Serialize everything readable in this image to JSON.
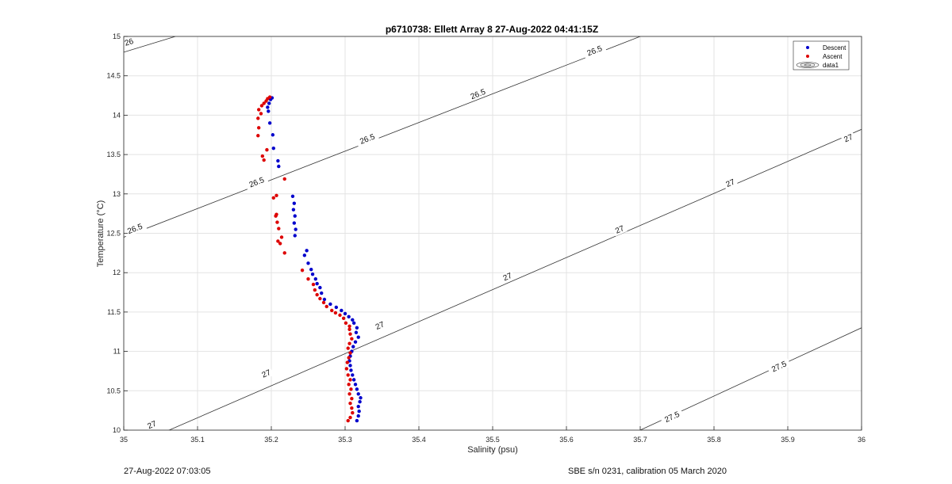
{
  "chart_data": {
    "type": "scatter",
    "title": "p6710738: Ellett Array 8 27-Aug-2022 04:41:15Z",
    "xlabel": "Salinity (psu)",
    "ylabel": "Temperature (°C)",
    "xlim": [
      35,
      36
    ],
    "ylim": [
      10,
      15
    ],
    "xticks": [
      "35",
      "35.1",
      "35.2",
      "35.3",
      "35.4",
      "35.5",
      "35.6",
      "35.7",
      "35.8",
      "35.9",
      "36"
    ],
    "yticks": [
      "10",
      "10.5",
      "11",
      "11.5",
      "12",
      "12.5",
      "13",
      "13.5",
      "14",
      "14.5",
      "15"
    ],
    "grid": true,
    "legend_position": "top-right",
    "legend": [
      "Descent",
      "Ascent",
      "data1"
    ],
    "series": [
      {
        "name": "Descent",
        "color": "#0000cc",
        "points": [
          [
            35.316,
            10.12
          ],
          [
            35.318,
            10.18
          ],
          [
            35.319,
            10.24
          ],
          [
            35.318,
            10.3
          ],
          [
            35.32,
            10.36
          ],
          [
            35.321,
            10.41
          ],
          [
            35.318,
            10.46
          ],
          [
            35.316,
            10.52
          ],
          [
            35.314,
            10.58
          ],
          [
            35.312,
            10.64
          ],
          [
            35.31,
            10.7
          ],
          [
            35.308,
            10.76
          ],
          [
            35.307,
            10.82
          ],
          [
            35.306,
            10.88
          ],
          [
            35.307,
            10.94
          ],
          [
            35.309,
            11.0
          ],
          [
            35.311,
            11.06
          ],
          [
            35.314,
            11.12
          ],
          [
            35.318,
            11.18
          ],
          [
            35.315,
            11.24
          ],
          [
            35.316,
            11.3
          ],
          [
            35.312,
            11.36
          ],
          [
            35.31,
            11.4
          ],
          [
            35.305,
            11.44
          ],
          [
            35.3,
            11.48
          ],
          [
            35.295,
            11.52
          ],
          [
            35.288,
            11.56
          ],
          [
            35.28,
            11.6
          ],
          [
            35.272,
            11.66
          ],
          [
            35.268,
            11.74
          ],
          [
            35.266,
            11.81
          ],
          [
            35.262,
            11.86
          ],
          [
            35.26,
            11.92
          ],
          [
            35.256,
            11.98
          ],
          [
            35.254,
            12.04
          ],
          [
            35.25,
            12.12
          ],
          [
            35.245,
            12.22
          ],
          [
            35.248,
            12.28
          ],
          [
            35.232,
            12.47
          ],
          [
            35.233,
            12.55
          ],
          [
            35.231,
            12.63
          ],
          [
            35.232,
            12.72
          ],
          [
            35.23,
            12.8
          ],
          [
            35.231,
            12.88
          ],
          [
            35.229,
            12.97
          ],
          [
            35.21,
            13.35
          ],
          [
            35.209,
            13.42
          ],
          [
            35.203,
            13.58
          ],
          [
            35.202,
            13.75
          ],
          [
            35.198,
            13.9
          ],
          [
            35.196,
            14.05
          ],
          [
            35.195,
            14.1
          ],
          [
            35.197,
            14.15
          ],
          [
            35.199,
            14.2
          ],
          [
            35.201,
            14.22
          ]
        ]
      },
      {
        "name": "Ascent",
        "color": "#dd0000",
        "points": [
          [
            35.304,
            10.12
          ],
          [
            35.307,
            10.16
          ],
          [
            35.31,
            10.22
          ],
          [
            35.309,
            10.28
          ],
          [
            35.307,
            10.34
          ],
          [
            35.309,
            10.4
          ],
          [
            35.306,
            10.46
          ],
          [
            35.308,
            10.52
          ],
          [
            35.305,
            10.58
          ],
          [
            35.307,
            10.64
          ],
          [
            35.304,
            10.7
          ],
          [
            35.302,
            10.78
          ],
          [
            35.303,
            10.86
          ],
          [
            35.305,
            10.92
          ],
          [
            35.307,
            10.98
          ],
          [
            35.304,
            11.04
          ],
          [
            35.306,
            11.1
          ],
          [
            35.309,
            11.16
          ],
          [
            35.307,
            11.22
          ],
          [
            35.306,
            11.28
          ],
          [
            35.306,
            11.32
          ],
          [
            35.301,
            11.36
          ],
          [
            35.298,
            11.42
          ],
          [
            35.293,
            11.46
          ],
          [
            35.287,
            11.49
          ],
          [
            35.282,
            11.52
          ],
          [
            35.275,
            11.57
          ],
          [
            35.271,
            11.62
          ],
          [
            35.266,
            11.67
          ],
          [
            35.262,
            11.72
          ],
          [
            35.259,
            11.78
          ],
          [
            35.257,
            11.85
          ],
          [
            35.25,
            11.92
          ],
          [
            35.242,
            12.03
          ],
          [
            35.218,
            12.25
          ],
          [
            35.212,
            12.37
          ],
          [
            35.209,
            12.4
          ],
          [
            35.214,
            12.45
          ],
          [
            35.21,
            12.56
          ],
          [
            35.208,
            12.64
          ],
          [
            35.206,
            12.72
          ],
          [
            35.207,
            12.74
          ],
          [
            35.203,
            12.95
          ],
          [
            35.207,
            12.98
          ],
          [
            35.218,
            13.19
          ],
          [
            35.19,
            13.43
          ],
          [
            35.188,
            13.48
          ],
          [
            35.194,
            13.56
          ],
          [
            35.182,
            13.74
          ],
          [
            35.183,
            13.84
          ],
          [
            35.182,
            13.96
          ],
          [
            35.186,
            14.02
          ],
          [
            35.183,
            14.07
          ],
          [
            35.187,
            14.12
          ],
          [
            35.19,
            14.15
          ],
          [
            35.193,
            14.18
          ],
          [
            35.195,
            14.21
          ],
          [
            35.198,
            14.23
          ]
        ]
      }
    ],
    "contour_labels": [
      {
        "label": "26",
        "x": 35.007,
        "y": 14.93
      },
      {
        "label": "26.5",
        "x": 35.015,
        "y": 12.56
      },
      {
        "label": "26.5",
        "x": 35.18,
        "y": 13.15
      },
      {
        "label": "26.5",
        "x": 35.33,
        "y": 13.7
      },
      {
        "label": "26.5",
        "x": 35.48,
        "y": 14.27
      },
      {
        "label": "26.5",
        "x": 35.638,
        "y": 14.82
      },
      {
        "label": "27",
        "x": 35.038,
        "y": 10.07
      },
      {
        "label": "27",
        "x": 35.193,
        "y": 10.72
      },
      {
        "label": "27",
        "x": 35.347,
        "y": 11.33
      },
      {
        "label": "27",
        "x": 35.52,
        "y": 11.95
      },
      {
        "label": "27",
        "x": 35.672,
        "y": 12.55
      },
      {
        "label": "27",
        "x": 35.822,
        "y": 13.14
      },
      {
        "label": "27",
        "x": 35.982,
        "y": 13.71
      },
      {
        "label": "27.5",
        "x": 35.743,
        "y": 10.17
      },
      {
        "label": "27.5",
        "x": 35.888,
        "y": 10.81
      }
    ],
    "footer_left": "27-Aug-2022 07:03:05",
    "footer_right": "SBE s/n 0231, calibration 05 March 2020"
  }
}
